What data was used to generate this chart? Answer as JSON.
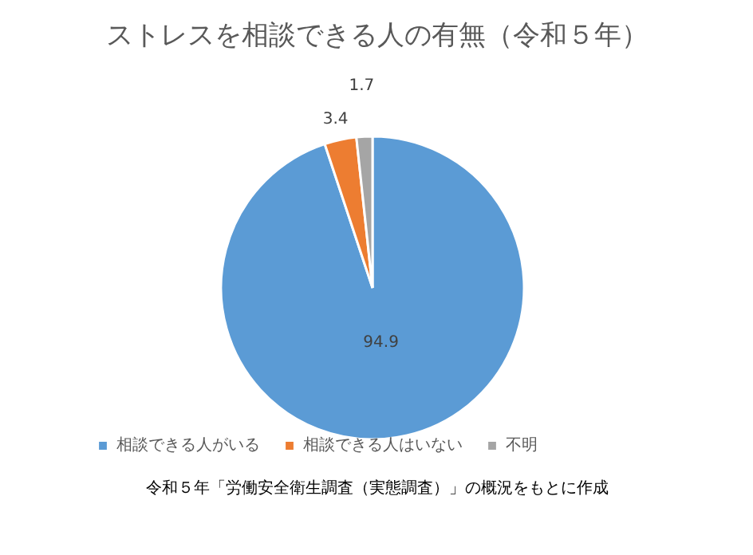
{
  "chart_data": {
    "type": "pie",
    "title": "ストレスを相談できる人の有無（令和５年）",
    "categories": [
      "相談できる人がいる",
      "相談できる人はいない",
      "不明"
    ],
    "values": [
      94.9,
      3.4,
      1.7
    ],
    "colors": [
      "#5b9bd5",
      "#ed7d31",
      "#a5a5a5"
    ],
    "data_labels": true,
    "legend": "bottom",
    "annotations": [
      "令和５年「労働安全衛生調査（実態調査）」の概況をもとに作成"
    ]
  }
}
